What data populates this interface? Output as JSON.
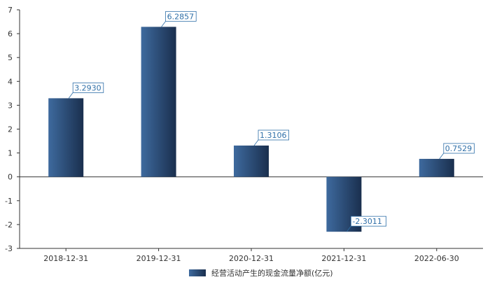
{
  "chart_data": {
    "type": "bar",
    "categories": [
      "2018-12-31",
      "2019-12-31",
      "2020-12-31",
      "2021-12-31",
      "2022-06-30"
    ],
    "series": [
      {
        "name": "经营活动产生的现金流量净额(亿元)",
        "values": [
          3.293,
          6.2857,
          1.3106,
          -2.3011,
          0.7529
        ],
        "data_labels": [
          "3.2930",
          "6.2857",
          "1.3106",
          "-2.3011",
          "0.7529"
        ]
      }
    ],
    "ylim": [
      -3,
      7
    ],
    "yticks": [
      -3,
      -2,
      -1,
      0,
      1,
      2,
      3,
      4,
      5,
      6,
      7
    ],
    "grid": false,
    "legend_position": "bottom-center",
    "bar_gradient": [
      "#3e6a9e",
      "#1a2f4e"
    ],
    "label_color": "#2f6fa8"
  }
}
